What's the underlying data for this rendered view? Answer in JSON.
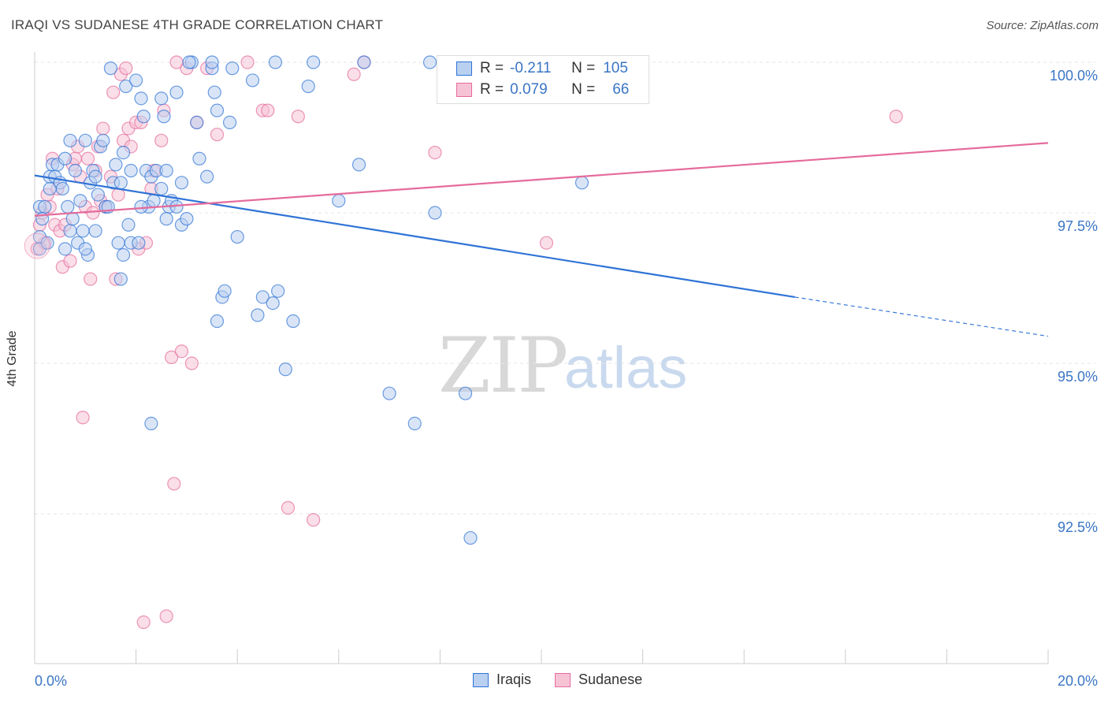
{
  "title": "IRAQI VS SUDANESE 4TH GRADE CORRELATION CHART",
  "source": "Source: ZipAtlas.com",
  "watermark": {
    "zip": "ZIP",
    "atlas": "atlas"
  },
  "colors": {
    "iraqis": "#2f73d6",
    "iraqis_fill": "#b9d0f0",
    "sudanese": "#e56b9b",
    "sudanese_fill": "#f6c3d5",
    "tick_blue": "#3a75c4",
    "grid": "#e6e6e6"
  },
  "legend": {
    "r_label": "R =",
    "n_label": "N =",
    "iraqis": {
      "r": "-0.211",
      "n": "105"
    },
    "sudanese": {
      "r": "0.079",
      "n": "66"
    }
  },
  "bottom_legend": {
    "iraqis": "Iraqis",
    "sudanese": "Sudanese"
  },
  "chart_data": {
    "type": "scatter",
    "title": "IRAQI VS SUDANESE 4TH GRADE CORRELATION CHART",
    "xlabel": "",
    "ylabel": "4th Grade",
    "xlim": [
      0,
      20
    ],
    "ylim": [
      90.5,
      100.2
    ],
    "x_ticks": [
      "0.0%",
      "20.0%"
    ],
    "y_ticks": [
      {
        "v": 100.0,
        "label": "100.0%"
      },
      {
        "v": 97.5,
        "label": "97.5%"
      },
      {
        "v": 95.0,
        "label": "95.0%"
      },
      {
        "v": 92.5,
        "label": "92.5%"
      }
    ],
    "grid": true,
    "legend_position": "top-center",
    "series": [
      {
        "name": "Iraqis",
        "r": -0.211,
        "n": 105,
        "trend": {
          "x0": 0,
          "y0": 98.12,
          "x1": 15.0,
          "y1": 96.1,
          "dash_to_x": 20.0,
          "dash_to_y": 95.45
        },
        "points": [
          [
            0.1,
            97.6
          ],
          [
            0.1,
            97.1
          ],
          [
            0.1,
            96.9
          ],
          [
            0.15,
            97.4
          ],
          [
            0.2,
            97.6
          ],
          [
            0.25,
            97.0
          ],
          [
            0.3,
            97.9
          ],
          [
            0.3,
            98.1
          ],
          [
            0.35,
            98.3
          ],
          [
            0.4,
            98.1
          ],
          [
            0.45,
            98.3
          ],
          [
            0.5,
            98.0
          ],
          [
            0.55,
            97.9
          ],
          [
            0.6,
            98.4
          ],
          [
            0.65,
            97.6
          ],
          [
            0.7,
            97.2
          ],
          [
            0.7,
            98.7
          ],
          [
            0.75,
            97.4
          ],
          [
            0.8,
            98.2
          ],
          [
            0.85,
            97.0
          ],
          [
            0.9,
            97.7
          ],
          [
            0.95,
            97.2
          ],
          [
            1.0,
            98.7
          ],
          [
            1.05,
            96.8
          ],
          [
            1.1,
            98.0
          ],
          [
            1.15,
            98.2
          ],
          [
            1.2,
            97.2
          ],
          [
            1.2,
            98.1
          ],
          [
            1.25,
            97.8
          ],
          [
            1.3,
            98.6
          ],
          [
            1.35,
            98.7
          ],
          [
            1.4,
            97.6
          ],
          [
            1.45,
            97.6
          ],
          [
            1.5,
            99.9
          ],
          [
            1.55,
            98.0
          ],
          [
            1.6,
            98.3
          ],
          [
            1.65,
            97.0
          ],
          [
            1.7,
            96.4
          ],
          [
            1.7,
            98.0
          ],
          [
            1.75,
            98.5
          ],
          [
            1.75,
            96.8
          ],
          [
            1.8,
            99.6
          ],
          [
            1.85,
            97.3
          ],
          [
            1.9,
            97.0
          ],
          [
            1.9,
            98.2
          ],
          [
            2.0,
            99.7
          ],
          [
            2.05,
            97.0
          ],
          [
            2.1,
            99.4
          ],
          [
            2.15,
            99.1
          ],
          [
            2.2,
            98.2
          ],
          [
            2.25,
            97.6
          ],
          [
            2.3,
            98.1
          ],
          [
            2.35,
            97.7
          ],
          [
            2.4,
            98.2
          ],
          [
            2.5,
            99.4
          ],
          [
            2.5,
            97.9
          ],
          [
            2.55,
            99.1
          ],
          [
            2.6,
            98.2
          ],
          [
            2.65,
            97.6
          ],
          [
            2.7,
            97.7
          ],
          [
            2.8,
            97.6
          ],
          [
            2.8,
            99.5
          ],
          [
            2.9,
            98.0
          ],
          [
            2.9,
            97.3
          ],
          [
            3.0,
            97.4
          ],
          [
            3.1,
            100.0
          ],
          [
            3.2,
            99.0
          ],
          [
            3.25,
            98.4
          ],
          [
            3.4,
            98.1
          ],
          [
            3.5,
            99.9
          ],
          [
            3.5,
            100.0
          ],
          [
            3.55,
            99.5
          ],
          [
            3.6,
            95.7
          ],
          [
            3.6,
            99.2
          ],
          [
            3.7,
            96.1
          ],
          [
            3.75,
            96.2
          ],
          [
            3.85,
            99.0
          ],
          [
            3.9,
            99.9
          ],
          [
            4.0,
            97.1
          ],
          [
            4.3,
            99.7
          ],
          [
            4.4,
            95.8
          ],
          [
            4.5,
            96.1
          ],
          [
            4.7,
            96.0
          ],
          [
            4.75,
            100.0
          ],
          [
            4.8,
            96.2
          ],
          [
            4.95,
            94.9
          ],
          [
            5.1,
            95.7
          ],
          [
            5.4,
            99.6
          ],
          [
            5.5,
            100.0
          ],
          [
            6.0,
            97.7
          ],
          [
            6.4,
            98.3
          ],
          [
            6.5,
            100.0
          ],
          [
            7.0,
            94.5
          ],
          [
            7.5,
            94.0
          ],
          [
            7.8,
            100.0
          ],
          [
            7.9,
            97.5
          ],
          [
            8.5,
            94.5
          ],
          [
            8.6,
            92.1
          ],
          [
            10.8,
            98.0
          ],
          [
            2.3,
            94.0
          ],
          [
            2.1,
            97.6
          ],
          [
            0.6,
            96.9
          ],
          [
            1.0,
            96.9
          ],
          [
            2.6,
            97.4
          ],
          [
            3.05,
            100.0
          ]
        ]
      },
      {
        "name": "Sudanese",
        "r": 0.079,
        "n": 66,
        "trend": {
          "x0": 0,
          "y0": 97.45,
          "x1": 20.0,
          "y1": 98.66
        },
        "points": [
          [
            0.05,
            96.9
          ],
          [
            0.1,
            97.3
          ],
          [
            0.15,
            97.5
          ],
          [
            0.2,
            97.0
          ],
          [
            0.25,
            97.8
          ],
          [
            0.3,
            97.6
          ],
          [
            0.35,
            98.4
          ],
          [
            0.4,
            97.3
          ],
          [
            0.45,
            97.9
          ],
          [
            0.5,
            97.2
          ],
          [
            0.55,
            96.6
          ],
          [
            0.6,
            97.3
          ],
          [
            0.7,
            96.7
          ],
          [
            0.75,
            98.3
          ],
          [
            0.8,
            98.4
          ],
          [
            0.85,
            98.6
          ],
          [
            0.9,
            98.1
          ],
          [
            0.95,
            94.1
          ],
          [
            1.0,
            97.6
          ],
          [
            1.05,
            98.4
          ],
          [
            1.1,
            96.4
          ],
          [
            1.15,
            97.5
          ],
          [
            1.2,
            98.2
          ],
          [
            1.25,
            98.6
          ],
          [
            1.3,
            97.7
          ],
          [
            1.35,
            98.9
          ],
          [
            1.4,
            97.6
          ],
          [
            1.5,
            98.1
          ],
          [
            1.55,
            99.5
          ],
          [
            1.6,
            96.4
          ],
          [
            1.65,
            97.8
          ],
          [
            1.7,
            99.8
          ],
          [
            1.75,
            98.7
          ],
          [
            1.8,
            99.9
          ],
          [
            1.85,
            98.9
          ],
          [
            1.9,
            98.6
          ],
          [
            2.0,
            99.0
          ],
          [
            2.05,
            96.9
          ],
          [
            2.1,
            99.0
          ],
          [
            2.15,
            90.7
          ],
          [
            2.2,
            97.0
          ],
          [
            2.3,
            97.9
          ],
          [
            2.35,
            98.2
          ],
          [
            2.5,
            98.7
          ],
          [
            2.55,
            99.2
          ],
          [
            2.6,
            90.8
          ],
          [
            2.7,
            95.1
          ],
          [
            2.75,
            93.0
          ],
          [
            2.9,
            95.2
          ],
          [
            3.0,
            99.9
          ],
          [
            3.1,
            95.0
          ],
          [
            3.2,
            99.0
          ],
          [
            3.4,
            99.9
          ],
          [
            3.6,
            98.8
          ],
          [
            4.2,
            100.0
          ],
          [
            4.5,
            99.2
          ],
          [
            4.6,
            99.2
          ],
          [
            5.0,
            92.6
          ],
          [
            5.2,
            99.1
          ],
          [
            5.5,
            92.4
          ],
          [
            6.3,
            99.8
          ],
          [
            6.5,
            100.0
          ],
          [
            7.9,
            98.5
          ],
          [
            10.1,
            97.0
          ],
          [
            17.0,
            99.1
          ],
          [
            2.8,
            100.0
          ]
        ]
      }
    ]
  }
}
